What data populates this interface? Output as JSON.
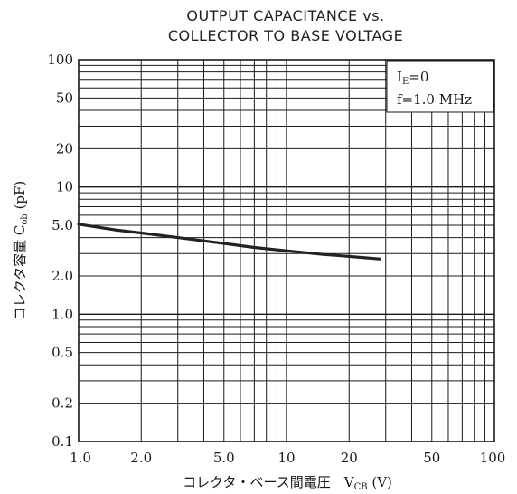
{
  "chart_data": {
    "type": "line",
    "title_line1": "OUTPUT CAPACITANCE vs.",
    "title_line2": "COLLECTOR TO BASE VOLTAGE",
    "xlabel": "コレクタ・ベース間電圧　V",
    "xlabel_sub": "CB",
    "xlabel_unit": " (V)",
    "ylabel": "コレクタ容量 C",
    "ylabel_sub": "ob",
    "ylabel_unit": " (pF)",
    "x_scale": "log",
    "y_scale": "log",
    "xlim": [
      1,
      100
    ],
    "ylim": [
      0.1,
      100
    ],
    "x_ticks": [
      {
        "value": 1,
        "label": "1.0"
      },
      {
        "value": 2,
        "label": "2.0"
      },
      {
        "value": 5,
        "label": "5.0"
      },
      {
        "value": 10,
        "label": "10"
      },
      {
        "value": 20,
        "label": "20"
      },
      {
        "value": 50,
        "label": "50"
      },
      {
        "value": 100,
        "label": "100"
      }
    ],
    "y_ticks": [
      {
        "value": 100,
        "label": "100"
      },
      {
        "value": 50,
        "label": "50"
      },
      {
        "value": 20,
        "label": "20"
      },
      {
        "value": 10,
        "label": "10"
      },
      {
        "value": 5,
        "label": "5.0"
      },
      {
        "value": 2,
        "label": "2.0"
      },
      {
        "value": 1,
        "label": "1.0"
      },
      {
        "value": 0.5,
        "label": "0.5"
      },
      {
        "value": 0.2,
        "label": "0.2"
      },
      {
        "value": 0.1,
        "label": "0.1"
      }
    ],
    "grid": true,
    "legend": {
      "line1_main": "I",
      "line1_sub": "E",
      "line1_rest": "=0",
      "line2": "f=1.0  MHz",
      "position": "top-right"
    },
    "series": [
      {
        "x": [
          1.0,
          1.5,
          2.0,
          3.0,
          5.0,
          7.0,
          10.0,
          15.0,
          20.0,
          28.0
        ],
        "values": [
          5.1,
          4.6,
          4.35,
          4.0,
          3.6,
          3.35,
          3.15,
          2.95,
          2.85,
          2.72
        ]
      }
    ]
  }
}
